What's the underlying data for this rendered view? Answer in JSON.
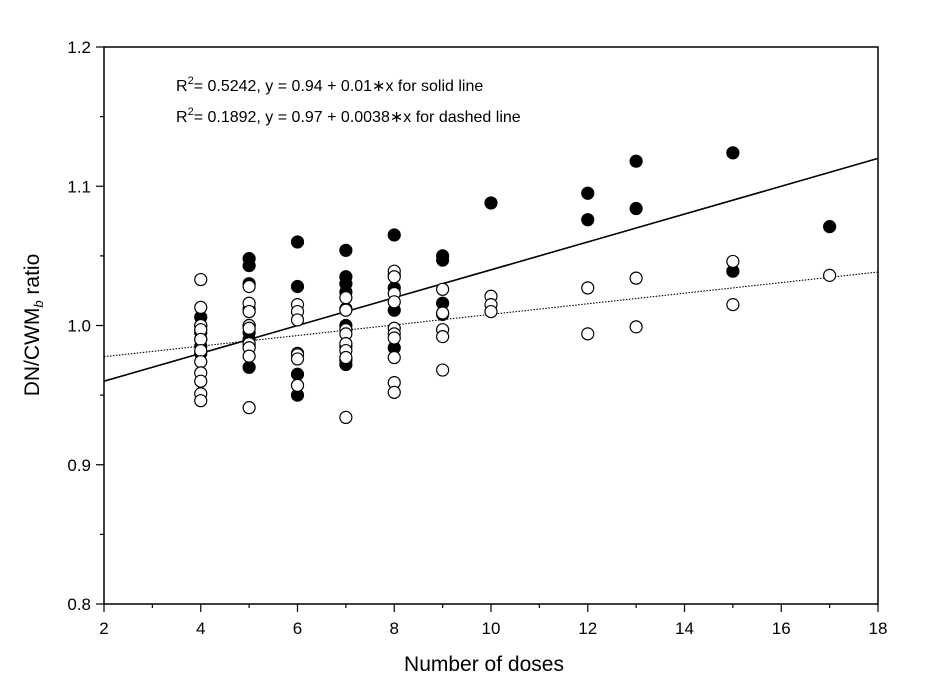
{
  "chart_data": {
    "type": "scatter",
    "xlabel": "Number of doses",
    "ylabel_main": "DN/CWM",
    "ylabel_sub": "b",
    "ylabel_tail": " ratio",
    "xlim": [
      2,
      18
    ],
    "ylim": [
      0.8,
      1.2
    ],
    "x_ticks": [
      "2",
      "4",
      "6",
      "8",
      "10",
      "12",
      "14",
      "16",
      "18"
    ],
    "y_ticks": [
      "0.8",
      "0.9",
      "1.0",
      "1.1",
      "1.2"
    ],
    "grid": false,
    "annotations": [
      {
        "r2_prefix": "R",
        "r2_exp": "2",
        "text": "= 0.5242, y = 0.94 + 0.01∗x for solid line"
      },
      {
        "r2_prefix": "R",
        "r2_exp": "2",
        "text": "= 0.1892, y = 0.97 + 0.0038∗x for dashed line"
      }
    ],
    "series": [
      {
        "marker": "filled",
        "color": "#000000",
        "points": [
          [
            4,
            1.006
          ],
          [
            4,
            1.0
          ],
          [
            4,
            0.995
          ],
          [
            4,
            0.99
          ],
          [
            4,
            0.985
          ],
          [
            4,
            0.98
          ],
          [
            5,
            1.048
          ],
          [
            5,
            1.043
          ],
          [
            5,
            1.03
          ],
          [
            5,
            1.012
          ],
          [
            5,
            1.0
          ],
          [
            5,
            0.995
          ],
          [
            5,
            0.99
          ],
          [
            5,
            0.985
          ],
          [
            5,
            0.97
          ],
          [
            6,
            1.06
          ],
          [
            6,
            1.028
          ],
          [
            6,
            0.98
          ],
          [
            6,
            0.965
          ],
          [
            6,
            0.957
          ],
          [
            6,
            0.95
          ],
          [
            7,
            1.054
          ],
          [
            7,
            1.035
          ],
          [
            7,
            1.03
          ],
          [
            7,
            1.024
          ],
          [
            7,
            1.012
          ],
          [
            7,
            1.0
          ],
          [
            7,
            0.985
          ],
          [
            7,
            0.975
          ],
          [
            7,
            0.972
          ],
          [
            8,
            1.065
          ],
          [
            8,
            1.036
          ],
          [
            8,
            1.027
          ],
          [
            8,
            1.011
          ],
          [
            8,
            0.984
          ],
          [
            9,
            1.05
          ],
          [
            9,
            1.047
          ],
          [
            9,
            1.016
          ],
          [
            9,
            1.008
          ],
          [
            10,
            1.088
          ],
          [
            12,
            1.095
          ],
          [
            12,
            1.076
          ],
          [
            13,
            1.118
          ],
          [
            13,
            1.084
          ],
          [
            15,
            1.124
          ],
          [
            15,
            1.039
          ],
          [
            17,
            1.071
          ]
        ]
      },
      {
        "marker": "open",
        "color": "#000000",
        "points": [
          [
            4,
            1.033
          ],
          [
            4,
            1.013
          ],
          [
            4,
            1.0
          ],
          [
            4,
            0.997
          ],
          [
            4,
            0.99
          ],
          [
            4,
            0.982
          ],
          [
            4,
            0.974
          ],
          [
            4,
            0.966
          ],
          [
            4,
            0.96
          ],
          [
            4,
            0.951
          ],
          [
            4,
            0.946
          ],
          [
            5,
            1.028
          ],
          [
            5,
            1.016
          ],
          [
            5,
            1.01
          ],
          [
            5,
            1.0
          ],
          [
            5,
            0.998
          ],
          [
            5,
            0.987
          ],
          [
            5,
            0.984
          ],
          [
            5,
            0.978
          ],
          [
            5,
            0.941
          ],
          [
            6,
            1.015
          ],
          [
            6,
            1.01
          ],
          [
            6,
            1.004
          ],
          [
            6,
            0.979
          ],
          [
            6,
            0.976
          ],
          [
            6,
            0.957
          ],
          [
            7,
            1.02
          ],
          [
            7,
            1.011
          ],
          [
            7,
            0.997
          ],
          [
            7,
            0.994
          ],
          [
            7,
            0.987
          ],
          [
            7,
            0.982
          ],
          [
            7,
            0.977
          ],
          [
            7,
            0.934
          ],
          [
            8,
            1.039
          ],
          [
            8,
            1.035
          ],
          [
            8,
            1.023
          ],
          [
            8,
            1.017
          ],
          [
            8,
            0.998
          ],
          [
            8,
            0.994
          ],
          [
            8,
            0.991
          ],
          [
            8,
            0.977
          ],
          [
            8,
            0.959
          ],
          [
            8,
            0.952
          ],
          [
            9,
            1.026
          ],
          [
            9,
            1.009
          ],
          [
            9,
            0.997
          ],
          [
            9,
            0.992
          ],
          [
            9,
            0.968
          ],
          [
            10,
            1.021
          ],
          [
            10,
            1.015
          ],
          [
            10,
            1.01
          ],
          [
            12,
            1.027
          ],
          [
            12,
            0.994
          ],
          [
            13,
            1.034
          ],
          [
            13,
            0.999
          ],
          [
            15,
            1.046
          ],
          [
            15,
            1.015
          ],
          [
            17,
            1.036
          ]
        ]
      }
    ],
    "regression_lines": [
      {
        "style": "solid",
        "intercept": 0.94,
        "slope": 0.01
      },
      {
        "style": "dotted",
        "intercept": 0.97,
        "slope": 0.0038
      }
    ]
  }
}
